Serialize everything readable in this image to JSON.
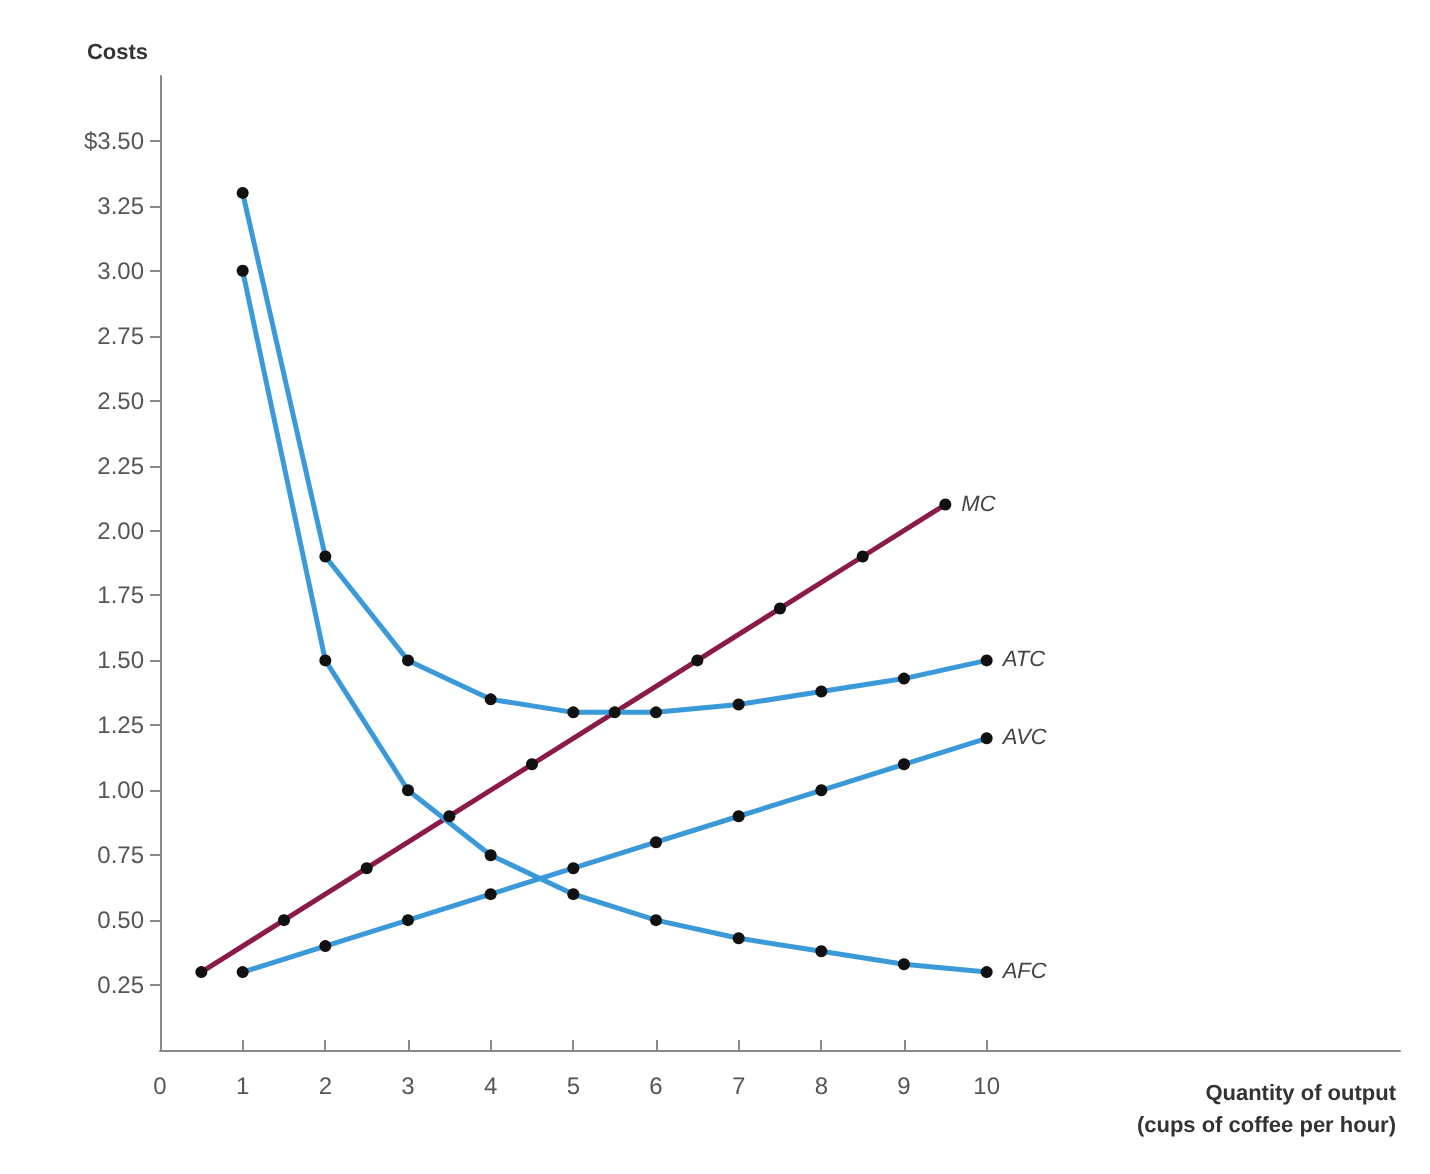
{
  "chart_data": {
    "type": "line",
    "xlabel": "Quantity of output\n(cups of coffee per hour)",
    "ylabel": "Costs",
    "xlim": [
      0,
      15
    ],
    "xticks": [
      0,
      1,
      2,
      3,
      4,
      5,
      6,
      7,
      8,
      9,
      10
    ],
    "ylim": [
      0,
      3.75
    ],
    "yticks": [
      {
        "value": 0.25,
        "label": "0.25"
      },
      {
        "value": 0.5,
        "label": "0.50"
      },
      {
        "value": 0.75,
        "label": "0.75"
      },
      {
        "value": 1,
        "label": "1.00"
      },
      {
        "value": 1.25,
        "label": "1.25"
      },
      {
        "value": 1.5,
        "label": "1.50"
      },
      {
        "value": 1.75,
        "label": "1.75"
      },
      {
        "value": 2,
        "label": "2.00"
      },
      {
        "value": 2.25,
        "label": "2.25"
      },
      {
        "value": 2.5,
        "label": "2.50"
      },
      {
        "value": 2.75,
        "label": "2.75"
      },
      {
        "value": 3,
        "label": "3.00"
      },
      {
        "value": 3.25,
        "label": "3.25"
      },
      {
        "value": 3.5,
        "label": "$3.50"
      }
    ],
    "grid": false,
    "legend": false,
    "marker": "circle",
    "line_style": "solid",
    "series": [
      {
        "name": "MC",
        "color": "#8b1a4a",
        "x": [
          0.5,
          1.5,
          2.5,
          3.5,
          4.5,
          5.5,
          6.5,
          7.5,
          8.5,
          9.5
        ],
        "values": [
          0.3,
          0.5,
          0.7,
          0.9,
          1.1,
          1.3,
          1.5,
          1.7,
          1.9,
          2.1
        ]
      },
      {
        "name": "ATC",
        "color": "#3a9ad9",
        "x": [
          1,
          2,
          3,
          4,
          5,
          6,
          7,
          8,
          9,
          10
        ],
        "values": [
          3.3,
          1.9,
          1.5,
          1.35,
          1.3,
          1.3,
          1.33,
          1.38,
          1.43,
          1.5
        ]
      },
      {
        "name": "AVC",
        "color": "#3a9ad9",
        "x": [
          1,
          2,
          3,
          4,
          5,
          6,
          7,
          8,
          9,
          10
        ],
        "values": [
          0.3,
          0.4,
          0.5,
          0.6,
          0.7,
          0.8,
          0.9,
          1.0,
          1.1,
          1.2
        ]
      },
      {
        "name": "AFC",
        "color": "#3a9ad9",
        "x": [
          1,
          2,
          3,
          4,
          5,
          6,
          7,
          8,
          9,
          10
        ],
        "values": [
          3.0,
          1.5,
          1.0,
          0.75,
          0.6,
          0.5,
          0.43,
          0.38,
          0.33,
          0.3
        ]
      }
    ]
  }
}
